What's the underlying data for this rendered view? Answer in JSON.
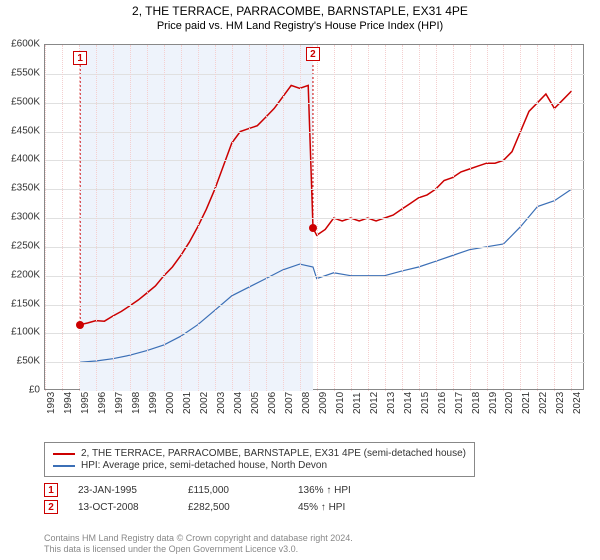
{
  "title": "2, THE TERRACE, PARRACOMBE, BARNSTAPLE, EX31 4PE",
  "subtitle": "Price paid vs. HM Land Registry's House Price Index (HPI)",
  "chart": {
    "type": "line",
    "xlim": [
      1993,
      2024.8
    ],
    "ylim": [
      0,
      600000
    ],
    "ytick_step": 50000,
    "yticks": [
      "£0",
      "£50K",
      "£100K",
      "£150K",
      "£200K",
      "£250K",
      "£300K",
      "£350K",
      "£400K",
      "£450K",
      "£500K",
      "£550K",
      "£600K"
    ],
    "xticks": [
      "1993",
      "1994",
      "1995",
      "1996",
      "1997",
      "1998",
      "1999",
      "2000",
      "2001",
      "2002",
      "2003",
      "2004",
      "2005",
      "2006",
      "2007",
      "2008",
      "2009",
      "2010",
      "2011",
      "2012",
      "2013",
      "2014",
      "2015",
      "2016",
      "2017",
      "2018",
      "2019",
      "2020",
      "2021",
      "2022",
      "2023",
      "2024"
    ],
    "background_color": "#ffffff",
    "grid_color": "#e0e0e0",
    "shade_color": "#eef3fb",
    "shade_x": [
      1995.07,
      2008.78
    ],
    "series": [
      {
        "name": "price_paid",
        "label": "2, THE TERRACE, PARRACOMBE, BARNSTAPLE, EX31 4PE (semi-detached house)",
        "color": "#cc0000",
        "line_width": 1.5,
        "data": [
          [
            1995.07,
            115000
          ],
          [
            1995.5,
            118000
          ],
          [
            1996,
            122000
          ],
          [
            1996.5,
            121000
          ],
          [
            1997,
            130000
          ],
          [
            1997.5,
            138000
          ],
          [
            1998,
            148000
          ],
          [
            1998.5,
            158000
          ],
          [
            1999,
            170000
          ],
          [
            1999.5,
            182000
          ],
          [
            2000,
            200000
          ],
          [
            2000.5,
            215000
          ],
          [
            2001,
            235000
          ],
          [
            2001.5,
            258000
          ],
          [
            2002,
            285000
          ],
          [
            2002.5,
            315000
          ],
          [
            2003,
            350000
          ],
          [
            2003.5,
            390000
          ],
          [
            2004,
            430000
          ],
          [
            2004.5,
            450000
          ],
          [
            2005,
            455000
          ],
          [
            2005.5,
            460000
          ],
          [
            2006,
            475000
          ],
          [
            2006.5,
            490000
          ],
          [
            2007,
            510000
          ],
          [
            2007.5,
            530000
          ],
          [
            2008,
            525000
          ],
          [
            2008.5,
            530000
          ],
          [
            2008.78,
            282500
          ],
          [
            2008.78,
            282500
          ],
          [
            2009,
            270000
          ],
          [
            2009.5,
            280000
          ],
          [
            2010,
            300000
          ],
          [
            2010.5,
            295000
          ],
          [
            2011,
            300000
          ],
          [
            2011.5,
            295000
          ],
          [
            2012,
            300000
          ],
          [
            2012.5,
            295000
          ],
          [
            2013,
            300000
          ],
          [
            2013.5,
            305000
          ],
          [
            2014,
            315000
          ],
          [
            2014.5,
            325000
          ],
          [
            2015,
            335000
          ],
          [
            2015.5,
            340000
          ],
          [
            2016,
            350000
          ],
          [
            2016.5,
            365000
          ],
          [
            2017,
            370000
          ],
          [
            2017.5,
            380000
          ],
          [
            2018,
            385000
          ],
          [
            2018.5,
            390000
          ],
          [
            2019,
            395000
          ],
          [
            2019.5,
            395000
          ],
          [
            2020,
            400000
          ],
          [
            2020.5,
            415000
          ],
          [
            2021,
            450000
          ],
          [
            2021.5,
            485000
          ],
          [
            2022,
            500000
          ],
          [
            2022.5,
            515000
          ],
          [
            2023,
            490000
          ],
          [
            2023.5,
            505000
          ],
          [
            2024,
            520000
          ]
        ]
      },
      {
        "name": "hpi",
        "label": "HPI: Average price, semi-detached house, North Devon",
        "color": "#3b6fb6",
        "line_width": 1.2,
        "data": [
          [
            1995.07,
            50000
          ],
          [
            1996,
            52000
          ],
          [
            1997,
            56000
          ],
          [
            1998,
            62000
          ],
          [
            1999,
            70000
          ],
          [
            2000,
            80000
          ],
          [
            2001,
            95000
          ],
          [
            2002,
            115000
          ],
          [
            2003,
            140000
          ],
          [
            2004,
            165000
          ],
          [
            2005,
            180000
          ],
          [
            2006,
            195000
          ],
          [
            2007,
            210000
          ],
          [
            2008,
            220000
          ],
          [
            2008.78,
            215000
          ],
          [
            2009,
            195000
          ],
          [
            2010,
            205000
          ],
          [
            2011,
            200000
          ],
          [
            2012,
            200000
          ],
          [
            2013,
            200000
          ],
          [
            2014,
            208000
          ],
          [
            2015,
            215000
          ],
          [
            2016,
            225000
          ],
          [
            2017,
            235000
          ],
          [
            2018,
            245000
          ],
          [
            2019,
            250000
          ],
          [
            2020,
            255000
          ],
          [
            2021,
            285000
          ],
          [
            2022,
            320000
          ],
          [
            2023,
            330000
          ],
          [
            2024,
            350000
          ]
        ]
      }
    ],
    "markers": [
      {
        "id": "1",
        "x": 1995.07,
        "y": 115000
      },
      {
        "id": "2",
        "x": 2008.78,
        "y": 282500
      }
    ]
  },
  "legend": {
    "series1": "2, THE TERRACE, PARRACOMBE, BARNSTAPLE, EX31 4PE (semi-detached house)",
    "series2": "HPI: Average price, semi-detached house, North Devon"
  },
  "transactions": [
    {
      "id": "1",
      "date": "23-JAN-1995",
      "price": "£115,000",
      "delta": "136% ↑ HPI"
    },
    {
      "id": "2",
      "date": "13-OCT-2008",
      "price": "£282,500",
      "delta": "45% ↑ HPI"
    }
  ],
  "footer": {
    "line1": "Contains HM Land Registry data © Crown copyright and database right 2024.",
    "line2": "This data is licensed under the Open Government Licence v3.0."
  }
}
